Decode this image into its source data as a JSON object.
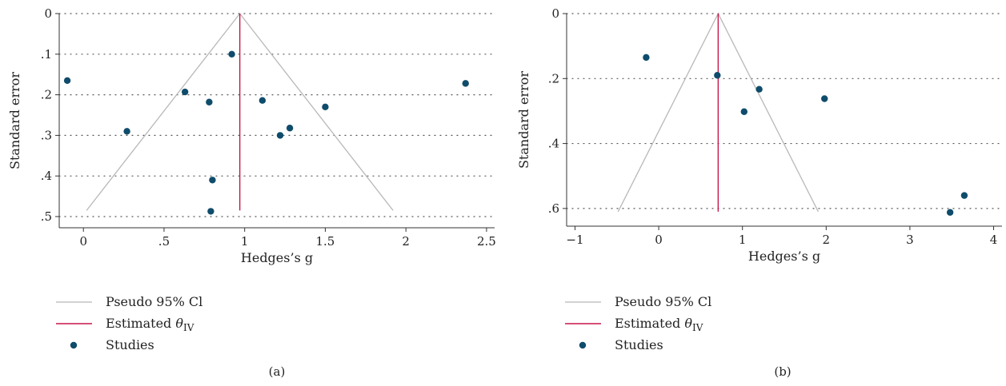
{
  "colors": {
    "ci_line": "#b8b8b8",
    "estimate_line": "#c8174a",
    "points": "#0f4c6b",
    "grid": "#555555",
    "axis": "#333333"
  },
  "legend": {
    "ci": "Pseudo 95% Cl",
    "estimate_prefix": "Estimated ",
    "estimate_symbol": "θ",
    "estimate_sub": "IV",
    "studies": "Studies"
  },
  "chart_data": [
    {
      "type": "scatter",
      "panel_label": "(a)",
      "xlabel": "Hedges’s g",
      "ylabel": "Standard error",
      "xlim": [
        -0.15,
        2.55
      ],
      "ylim": [
        0,
        0.5
      ],
      "y_reversed": true,
      "x_ticks": [
        0,
        0.5,
        1,
        1.5,
        2,
        2.5
      ],
      "x_tick_labels": [
        "0",
        ".5",
        "1",
        "1.5",
        "2",
        "2.5"
      ],
      "y_ticks": [
        0,
        0.1,
        0.2,
        0.3,
        0.4,
        0.5
      ],
      "y_tick_labels": [
        "0",
        ".1",
        ".2",
        ".3",
        ".4",
        ".5"
      ],
      "grid": "horizontal dotted",
      "estimate": 0.97,
      "se_max": 0.485,
      "series": [
        {
          "name": "Studies",
          "points": [
            {
              "x": -0.1,
              "y": 0.165
            },
            {
              "x": 0.92,
              "y": 0.1
            },
            {
              "x": 0.63,
              "y": 0.193
            },
            {
              "x": 0.78,
              "y": 0.218
            },
            {
              "x": 1.11,
              "y": 0.214
            },
            {
              "x": 1.5,
              "y": 0.23
            },
            {
              "x": 2.37,
              "y": 0.172
            },
            {
              "x": 0.27,
              "y": 0.29
            },
            {
              "x": 1.28,
              "y": 0.282
            },
            {
              "x": 1.22,
              "y": 0.3
            },
            {
              "x": 0.8,
              "y": 0.41
            },
            {
              "x": 0.79,
              "y": 0.487
            }
          ]
        }
      ]
    },
    {
      "type": "scatter",
      "panel_label": "(b)",
      "xlabel": "Hedges’s g",
      "ylabel": "Standard error",
      "xlim": [
        -1.1,
        4.1
      ],
      "ylim": [
        0,
        0.62
      ],
      "y_reversed": true,
      "x_ticks": [
        -1,
        0,
        1,
        2,
        3,
        4
      ],
      "x_tick_labels": [
        "−1",
        "0",
        "1",
        "2",
        "3",
        "4"
      ],
      "y_ticks": [
        0,
        0.2,
        0.4,
        0.6
      ],
      "y_tick_labels": [
        "0",
        ".2",
        ".4",
        ".6"
      ],
      "grid": "horizontal dotted",
      "estimate": 0.71,
      "se_max": 0.61,
      "series": [
        {
          "name": "Studies",
          "points": [
            {
              "x": -0.15,
              "y": 0.135
            },
            {
              "x": 0.7,
              "y": 0.19
            },
            {
              "x": 1.2,
              "y": 0.233
            },
            {
              "x": 1.98,
              "y": 0.262
            },
            {
              "x": 1.02,
              "y": 0.302
            },
            {
              "x": 3.65,
              "y": 0.56
            },
            {
              "x": 3.48,
              "y": 0.612
            }
          ]
        }
      ]
    }
  ]
}
